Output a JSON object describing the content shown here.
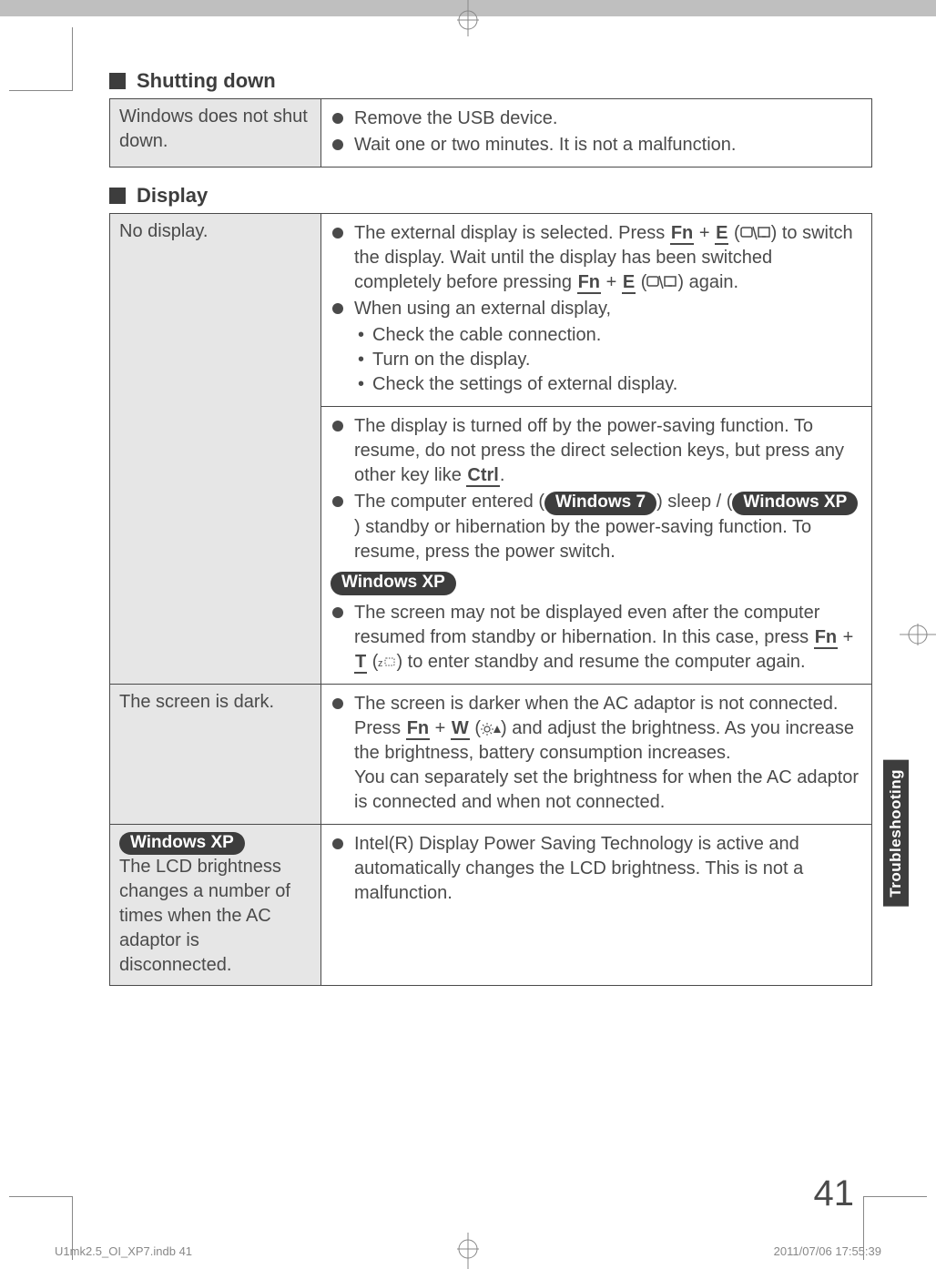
{
  "pageNumber": "41",
  "sideTab": "Troubleshooting",
  "footer": {
    "left": "U1mk2.5_OI_XP7.indb   41",
    "right": "2011/07/06   17:55:39"
  },
  "sections": [
    {
      "title": "Shutting down",
      "rows": [
        {
          "problem": {
            "text": "Windows does not shut down."
          },
          "solutionBlocks": [
            {
              "bullets": [
                {
                  "text": "Remove the USB device."
                },
                {
                  "text": "Wait one or two minutes. It is not a malfunction."
                }
              ]
            }
          ]
        }
      ]
    },
    {
      "title": "Display",
      "rows": [
        {
          "problem": {
            "text": "No display."
          },
          "solutionBlocks": [
            {
              "bullets": [
                {
                  "html": "The external display is selected. Press <span class='key'>Fn</span> + <span class='key'>E</span> (<svg class='icon-inline' width='34' height='16'><rect x='1' y='2' width='12' height='10' rx='2' fill='none' stroke='#4a4a4a' stroke-width='1.5'/><line x1='14' y1='1' x2='18' y2='15' stroke='#4a4a4a' stroke-width='1.5'/><rect x='20' y='2' width='12' height='10' fill='none' stroke='#4a4a4a' stroke-width='1.5'/><line x1='24' y1='12' x2='28' y2='12' stroke='#4a4a4a' stroke-width='1.5'/></svg>) to switch the display. Wait until the display has been switched completely before pressing <span class='key'>Fn</span> + <span class='key'>E</span> (<svg class='icon-inline' width='34' height='16'><rect x='1' y='2' width='12' height='10' rx='2' fill='none' stroke='#4a4a4a' stroke-width='1.5'/><line x1='14' y1='1' x2='18' y2='15' stroke='#4a4a4a' stroke-width='1.5'/><rect x='20' y='2' width='12' height='10' fill='none' stroke='#4a4a4a' stroke-width='1.5'/><line x1='24' y1='12' x2='28' y2='12' stroke='#4a4a4a' stroke-width='1.5'/></svg>) again."
                },
                {
                  "text": "When using an external display,",
                  "sub": [
                    "Check the cable connection.",
                    "Turn on the display.",
                    "Check the settings of external display."
                  ]
                }
              ]
            },
            {
              "bullets": [
                {
                  "html": "The display is turned off by the power-saving function. To resume, do not press the direct selection keys, but press any other key like <span class='key'>Ctrl</span>."
                },
                {
                  "html": "The computer entered (<span class='pill'>Windows 7</span>) sleep / (<span class='pill'>Windows XP</span>) standby or hibernation by the power-saving function. To resume, press the power switch."
                }
              ],
              "pillAfter": "Windows XP",
              "bulletsAfter": [
                {
                  "html": "The screen may not be displayed even after the computer resumed from standby or hibernation. In this case, press <span class='key'>Fn</span> + <span class='key'>T</span> (<svg class='icon-inline' width='20' height='14'><text x='0' y='11' font-size='11' fill='#4a4a4a'>z</text><rect x='8' y='2' width='10' height='8' rx='1' fill='none' stroke='#4a4a4a' stroke-width='1' stroke-dasharray='1.5 1.5'/></svg>) to enter standby and resume the computer again."
                }
              ]
            }
          ]
        },
        {
          "problem": {
            "text": "The screen is dark."
          },
          "solutionBlocks": [
            {
              "bullets": [
                {
                  "html": "The screen is darker when the AC adaptor is not connected. Press <span class='key'>Fn</span> + <span class='key'>W</span> (<svg class='icon-inline' width='22' height='14'><circle cx='7' cy='7' r='3' fill='none' stroke='#4a4a4a' stroke-width='1.2'/><line x1='7' y1='0' x2='7' y2='2' stroke='#4a4a4a'/><line x1='7' y1='12' x2='7' y2='14' stroke='#4a4a4a'/><line x1='0' y1='7' x2='2' y2='7' stroke='#4a4a4a'/><line x1='12' y1='7' x2='14' y2='7' stroke='#4a4a4a'/><line x1='2' y1='2' x2='3.5' y2='3.5' stroke='#4a4a4a'/><line x1='10.5' y1='10.5' x2='12' y2='12' stroke='#4a4a4a'/><line x1='2' y1='12' x2='3.5' y2='10.5' stroke='#4a4a4a'/><line x1='10.5' y1='3.5' x2='12' y2='2' stroke='#4a4a4a'/><polygon points='18,3 22,11 14,11' fill='#4a4a4a'/></svg>) and adjust the brightness. As you increase the brightness, battery consumption increases.<br>You can separately set the brightness for when the AC adaptor is connected and when not connected."
                }
              ]
            }
          ]
        },
        {
          "problem": {
            "pill": "Windows XP",
            "text": "The LCD brightness changes a number of times when the AC adaptor is disconnected."
          },
          "solutionBlocks": [
            {
              "bullets": [
                {
                  "text": "Intel(R) Display Power Saving Technology is active and automatically changes the LCD brightness. This is not a malfunction."
                }
              ]
            }
          ]
        }
      ]
    }
  ]
}
